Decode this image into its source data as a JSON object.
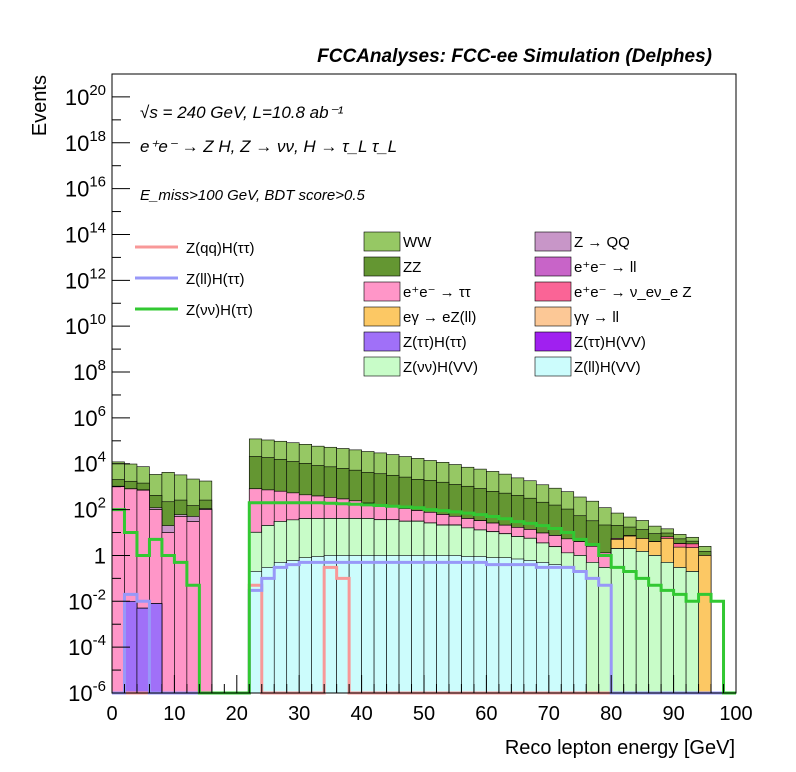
{
  "title": "FCCAnalyses: FCC-ee Simulation (Delphes)",
  "annotations": {
    "line1": "√s = 240 GeV, L=10.8 ab⁻¹",
    "line2": "e⁺e⁻ → Z H, Z → νν, H → τ_L τ_L",
    "line3": "E_miss>100 GeV, BDT score>0.5"
  },
  "chart_data": {
    "type": "bar",
    "subtype": "stacked-histogram-with-signal-lines",
    "xlabel": "Reco lepton energy [GeV]",
    "ylabel": "Events",
    "xlim": [
      0,
      100
    ],
    "ylim": [
      1e-06,
      1e+21
    ],
    "y_log": true,
    "bin_width": 2,
    "x_ticks": [
      0,
      10,
      20,
      30,
      40,
      50,
      60,
      70,
      80,
      90,
      100
    ],
    "y_ticks": [
      {
        "value": 1e-06,
        "base": "10",
        "exp": "-6"
      },
      {
        "value": 0.0001,
        "base": "10",
        "exp": "-4"
      },
      {
        "value": 0.01,
        "base": "10",
        "exp": "-2"
      },
      {
        "value": 1,
        "base": "1",
        "exp": ""
      },
      {
        "value": 100.0,
        "base": "10",
        "exp": "2"
      },
      {
        "value": 10000.0,
        "base": "10",
        "exp": "4"
      },
      {
        "value": 1000000.0,
        "base": "10",
        "exp": "6"
      },
      {
        "value": 100000000.0,
        "base": "10",
        "exp": "8"
      },
      {
        "value": 10000000000.0,
        "base": "10",
        "exp": "10"
      },
      {
        "value": 1000000000000.0,
        "base": "10",
        "exp": "12"
      },
      {
        "value": 100000000000000.0,
        "base": "10",
        "exp": "14"
      },
      {
        "value": 1e+16,
        "base": "10",
        "exp": "16"
      },
      {
        "value": 1e+18,
        "base": "10",
        "exp": "18"
      },
      {
        "value": 1e+20,
        "base": "10",
        "exp": "20"
      }
    ],
    "legend_placement": "upper-middle",
    "backgrounds": [
      {
        "name": "Z(ll)H(VV)",
        "color": "#ccfcfc",
        "values": [
          0,
          0,
          0,
          0,
          0,
          0,
          0,
          0,
          0,
          0,
          0,
          0.2,
          0.3,
          0.5,
          0.6,
          0.8,
          0.9,
          1,
          1,
          1,
          1,
          1,
          1,
          1,
          1,
          1,
          1,
          1,
          0.9,
          0.9,
          0.8,
          0.8,
          0.7,
          0.6,
          0.5,
          0.4,
          0.3,
          0.2,
          0,
          0,
          0,
          0,
          0,
          0,
          0,
          0,
          0,
          0,
          0,
          0
        ]
      },
      {
        "name": "Z(νν)H(VV)",
        "color": "#c8fcc8",
        "values": [
          0,
          0,
          0,
          0,
          0,
          0,
          0,
          0,
          0,
          0,
          0,
          10,
          20,
          30,
          35,
          40,
          40,
          40,
          40,
          40,
          40,
          35,
          35,
          30,
          30,
          25,
          20,
          20,
          15,
          12,
          10,
          8,
          6,
          5,
          3,
          2,
          1,
          0.8,
          0.5,
          0.3,
          2,
          2,
          1.5,
          1,
          0.5,
          0.3,
          0.2,
          0,
          0,
          0
        ]
      },
      {
        "name": "Z(ττ)H(VV)",
        "color": "#a020f0",
        "values": [
          0,
          0,
          0,
          0,
          0,
          0,
          0,
          0,
          0,
          0,
          0,
          0,
          0,
          0,
          0,
          0,
          0,
          0,
          0,
          0,
          0,
          0,
          0,
          0,
          0,
          0,
          0,
          0,
          0,
          0,
          0,
          0,
          0,
          0,
          0,
          0,
          0,
          0,
          0,
          0,
          0,
          0,
          0,
          0,
          0,
          0,
          0,
          0,
          0,
          0
        ]
      },
      {
        "name": "Z(ττ)H(ττ)",
        "color": "#a070f8",
        "values": [
          0,
          0.01,
          0.005,
          0.008,
          0,
          0,
          0,
          0,
          0,
          0,
          0,
          0.05,
          0.03,
          0.04,
          0.08,
          0.05,
          0.03,
          0.06,
          0.1,
          0.05,
          0.08,
          0.1,
          0.04,
          0.05,
          0.1,
          0.03,
          0.06,
          0.08,
          0.02,
          0.05,
          0.04,
          0.06,
          0.03,
          0.02,
          0.01,
          0,
          0,
          0,
          0,
          0,
          0,
          0,
          0,
          0,
          0,
          0,
          0,
          0,
          0,
          0
        ]
      },
      {
        "name": "γγ → ll",
        "color": "#fcc896",
        "values": [
          0,
          0,
          0,
          0,
          0,
          0,
          0,
          0,
          0,
          0,
          0,
          0,
          0,
          0,
          0,
          0,
          0,
          0,
          0,
          0,
          0,
          0,
          0,
          0,
          0,
          0,
          0,
          0,
          0,
          0,
          0,
          0,
          0,
          0,
          0,
          0,
          0,
          0,
          0,
          0,
          0,
          0,
          0,
          0,
          0,
          0,
          0,
          0,
          0,
          0
        ]
      },
      {
        "name": "eγ → eZ(ll)",
        "color": "#fcc864",
        "values": [
          0,
          0,
          0,
          0,
          0,
          0,
          0,
          0,
          0,
          0,
          0,
          0,
          0,
          0,
          0,
          0,
          0,
          0,
          0,
          0,
          0,
          0,
          0,
          0,
          0,
          0,
          0,
          0,
          0,
          0,
          0,
          0,
          0,
          0,
          0,
          0,
          0,
          0,
          0,
          0,
          3,
          5,
          4,
          3,
          5,
          2,
          2,
          1,
          0,
          0
        ]
      },
      {
        "name": "e⁺e⁻ → ν_eν_e Z",
        "color": "#fa6496",
        "values": [
          0,
          0,
          0,
          0,
          0,
          0,
          0,
          0,
          0,
          0,
          0,
          0,
          0,
          0,
          0,
          0,
          0,
          0,
          0,
          0,
          0,
          0,
          0,
          0,
          0,
          0,
          0,
          0,
          0,
          0,
          0,
          0,
          0,
          0,
          0,
          0,
          0,
          0,
          0,
          0,
          0,
          0,
          0,
          0,
          1,
          1,
          1,
          0,
          0,
          0
        ]
      },
      {
        "name": "e⁺e⁻ → ττ",
        "color": "#ff96c8",
        "values": [
          1000,
          800,
          700,
          100,
          10,
          50,
          30,
          100,
          0,
          0,
          0,
          800,
          700,
          600,
          500,
          400,
          350,
          300,
          250,
          200,
          150,
          130,
          100,
          80,
          60,
          50,
          40,
          30,
          25,
          20,
          15,
          12,
          10,
          8,
          6,
          5,
          4,
          3,
          2,
          1,
          0.5,
          0.3,
          0,
          0,
          0,
          0,
          0,
          0,
          0,
          0
        ]
      },
      {
        "name": "e⁺e⁻ → ll",
        "color": "#c864c8",
        "values": [
          0,
          0,
          0,
          0,
          0,
          0,
          0,
          0,
          0,
          0,
          0,
          0,
          0,
          0,
          0,
          0,
          0,
          0,
          0,
          0,
          0,
          0,
          0,
          0,
          0,
          0,
          0,
          0,
          0,
          0,
          0,
          0,
          0,
          0,
          0,
          0,
          0,
          0,
          0,
          0,
          0,
          0,
          0,
          0,
          0,
          0,
          0,
          0,
          0,
          0
        ]
      },
      {
        "name": "Z → QQ",
        "color": "#c896c8",
        "values": [
          50,
          20,
          30,
          20,
          10,
          10,
          20,
          10,
          0,
          0,
          0,
          0,
          0,
          0,
          0,
          0,
          0,
          0,
          0,
          0,
          0,
          0,
          0,
          0,
          0,
          0,
          0,
          0,
          0,
          0,
          0,
          0,
          0,
          0,
          0,
          0,
          0,
          0,
          0,
          0,
          0,
          0,
          0,
          0,
          0,
          0,
          0,
          0,
          0,
          0
        ]
      },
      {
        "name": "ZZ",
        "color": "#649632",
        "values": [
          1000,
          900,
          700,
          300,
          200,
          200,
          100,
          150,
          0,
          0,
          0,
          20000,
          18000,
          15000,
          12000,
          10000,
          8000,
          7000,
          6000,
          5000,
          4000,
          3500,
          3000,
          2500,
          2000,
          1800,
          1500,
          1200,
          1000,
          800,
          600,
          500,
          400,
          300,
          200,
          150,
          100,
          50,
          30,
          20,
          15,
          10,
          8,
          5,
          3,
          2,
          1,
          0.5,
          0,
          0
        ]
      },
      {
        "name": "WW",
        "color": "#96c864",
        "values": [
          10000,
          8000,
          6000,
          3000,
          4000,
          3000,
          2000,
          1500,
          0,
          0,
          0,
          100000,
          90000,
          80000,
          70000,
          60000,
          50000,
          45000,
          40000,
          35000,
          30000,
          26000,
          22000,
          18000,
          15000,
          12000,
          10000,
          8000,
          6000,
          5000,
          4000,
          3000,
          2000,
          1500,
          1000,
          700,
          500,
          300,
          200,
          100,
          50,
          30,
          20,
          10,
          5,
          3,
          2,
          1,
          0,
          0
        ]
      }
    ],
    "signals": [
      {
        "name": "Z(qq)H(ττ)",
        "color": "#f89898",
        "values": [
          0,
          0,
          0,
          0,
          0,
          0,
          0,
          0,
          0,
          0,
          0,
          0.05,
          0,
          0,
          0,
          0,
          0,
          0.3,
          0.1,
          0,
          0,
          0,
          0,
          0,
          0,
          0,
          0,
          0,
          0,
          0,
          0,
          0,
          0,
          0,
          0,
          0,
          0,
          0,
          0,
          0,
          0,
          0,
          0,
          0,
          0,
          0,
          0,
          0,
          0,
          0
        ]
      },
      {
        "name": "Z(ll)H(ττ)",
        "color": "#9898f8",
        "values": [
          0,
          0.02,
          0.01,
          0,
          0,
          0,
          0,
          0,
          0,
          0,
          0,
          0.03,
          0.1,
          0.3,
          0.4,
          0.5,
          0.5,
          0.5,
          0.5,
          0.5,
          0.5,
          0.5,
          0.5,
          0.5,
          0.5,
          0.5,
          0.5,
          0.5,
          0.5,
          0.5,
          0.4,
          0.4,
          0.4,
          0.4,
          0.3,
          0.3,
          0.3,
          0.2,
          0.1,
          0.05,
          0,
          0,
          0,
          0,
          0,
          0,
          0,
          0,
          0,
          0
        ]
      },
      {
        "name": "Z(νν)H(ττ)",
        "color": "#32c832",
        "values": [
          100,
          10,
          1,
          5,
          1,
          0.5,
          0.05,
          0,
          0,
          0,
          0,
          200,
          200,
          200,
          200,
          200,
          200,
          190,
          180,
          170,
          160,
          150,
          140,
          130,
          120,
          100,
          90,
          80,
          70,
          60,
          50,
          40,
          30,
          25,
          20,
          15,
          10,
          5,
          3,
          1,
          0.3,
          0.2,
          0.1,
          0.05,
          0.03,
          0.02,
          0.01,
          0.02,
          0.01,
          0
        ]
      }
    ]
  }
}
